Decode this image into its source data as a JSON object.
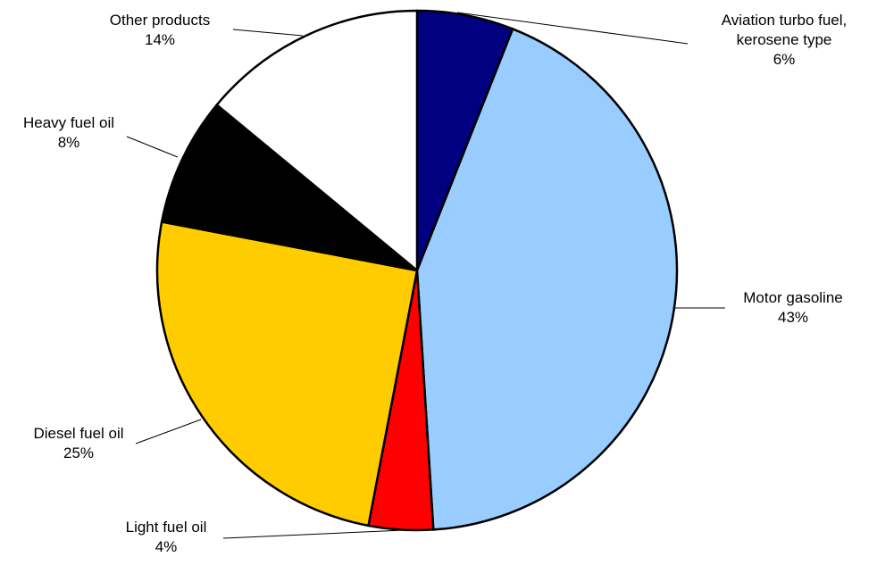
{
  "chart_data": {
    "type": "pie",
    "start_angle_deg": 0,
    "direction": "clockwise",
    "slices": [
      {
        "label_lines": [
          "Aviation turbo fuel,",
          "kerosene type"
        ],
        "value": 6,
        "value_label": "6%",
        "color": "#000080"
      },
      {
        "label_lines": [
          "Motor gasoline"
        ],
        "value": 43,
        "value_label": "43%",
        "color": "#99CCFF"
      },
      {
        "label_lines": [
          "Light fuel oil"
        ],
        "value": 4,
        "value_label": "4%",
        "color": "#FF0000"
      },
      {
        "label_lines": [
          "Diesel fuel oil"
        ],
        "value": 25,
        "value_label": "25%",
        "color": "#FFCC00"
      },
      {
        "label_lines": [
          "Heavy fuel oil"
        ],
        "value": 8,
        "value_label": "8%",
        "color": "#000000"
      },
      {
        "label_lines": [
          "Other products"
        ],
        "value": 14,
        "value_label": "14%",
        "color": "#FFFFFF"
      }
    ]
  }
}
